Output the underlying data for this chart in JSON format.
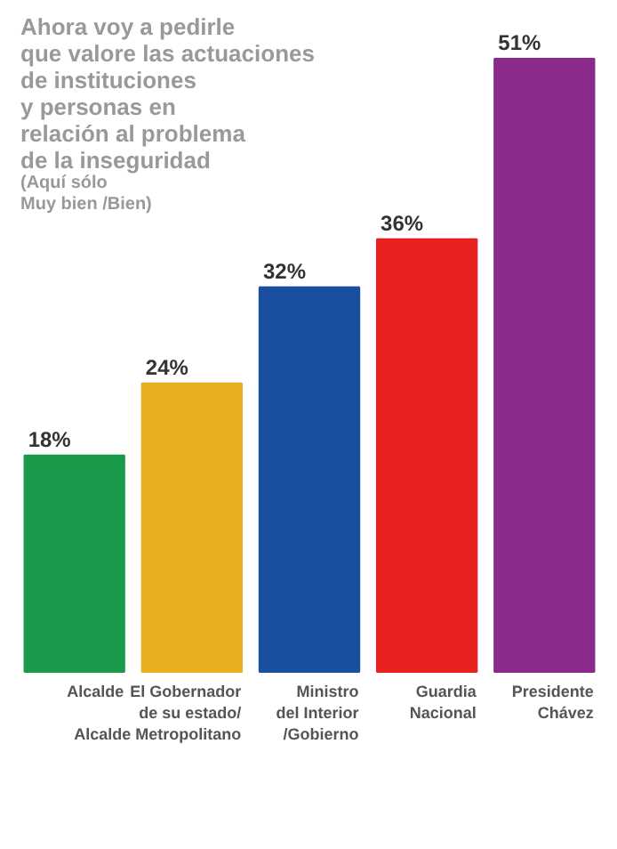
{
  "chart_data": {
    "type": "bar",
    "title": "Ahora voy a pedirle\nque valore las actuaciones\nde instituciones\ny personas en\nrelación al problema\nde la inseguridad",
    "subtitle": "(Aquí sólo\nMuy bien /Bien)",
    "categories": [
      "Alcalde",
      "El Gobernador\nde su estado/\nAlcalde Metropolitano",
      "Ministro\ndel Interior\n/Gobierno",
      "Guardia\nNacional",
      "Presidente\nChávez"
    ],
    "values": [
      18,
      24,
      32,
      36,
      51
    ],
    "colors": [
      "#1a9a4a",
      "#e8b020",
      "#1a4fa0",
      "#e82020",
      "#8a2a8a"
    ],
    "value_labels": [
      "18%",
      "24%",
      "32%",
      "36%",
      "51%"
    ],
    "grid": false
  }
}
